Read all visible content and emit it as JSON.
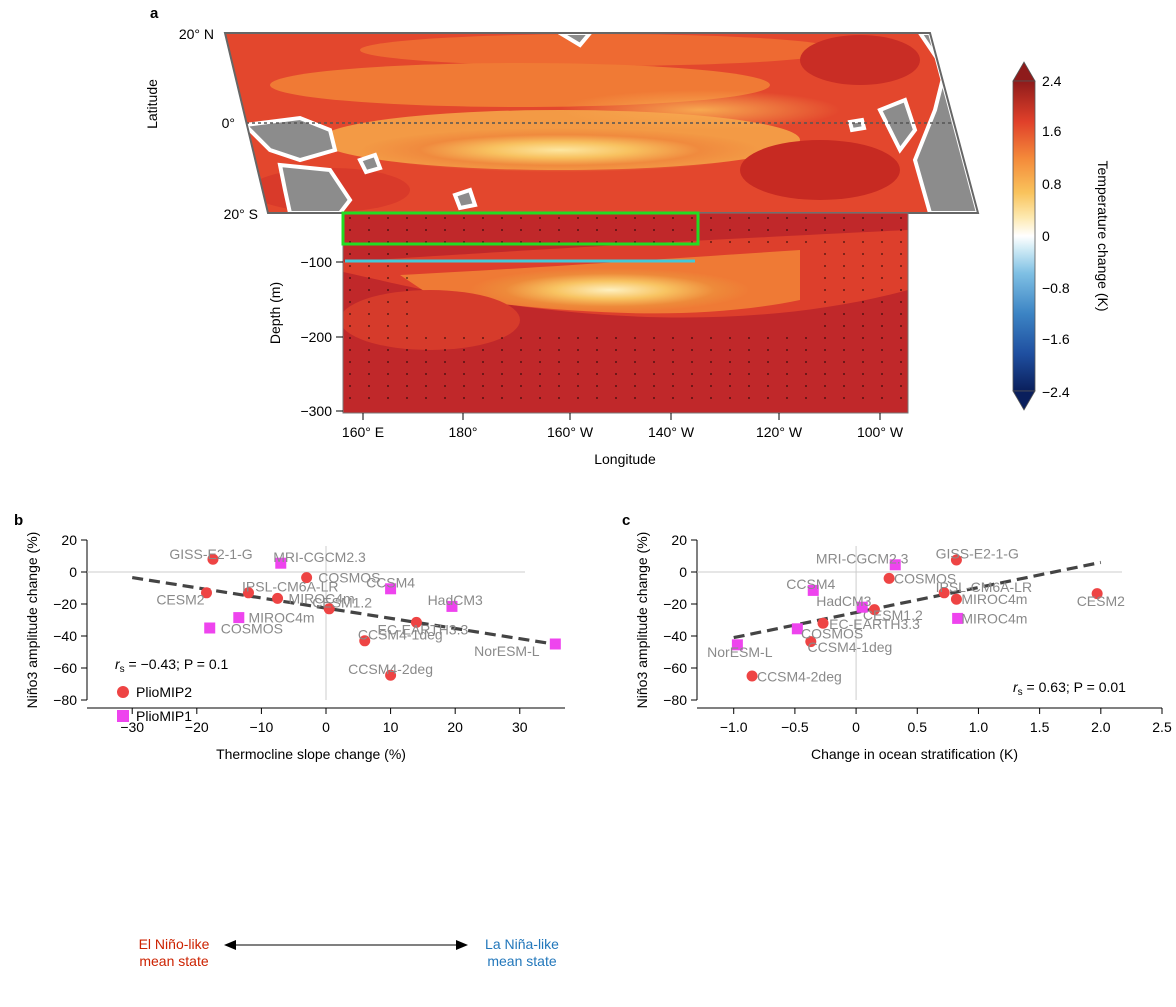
{
  "panel_a": {
    "panel_label": "a",
    "lat_label": "Latitude",
    "lat_ticks": [
      "20° N",
      "0°",
      "20° S"
    ],
    "depth_label": "Depth (m)",
    "depth_ticks": [
      "−100",
      "−200",
      "−300"
    ],
    "lon_label": "Longitude",
    "lon_ticks": [
      "160° E",
      "180°",
      "160° W",
      "140° W",
      "120° W",
      "100° W"
    ],
    "colorbar_label": "Temperature change (K)",
    "colorbar_ticks": [
      "2.4",
      "1.6",
      "0.8",
      "0",
      "−0.8",
      "−1.6",
      "−2.4"
    ],
    "colors": {
      "box": "#22dd22",
      "line": "#44c8d8",
      "land": "#8c8c8c"
    }
  },
  "chart_data": [
    {
      "type": "scatter",
      "panel": "b",
      "xlabel": "Thermocline slope change (%)",
      "ylabel": "Niño3 amplitude change (%)",
      "xticks": [
        "−30",
        "−20",
        "−10",
        "0",
        "10",
        "20",
        "30"
      ],
      "yticks": [
        "20",
        "0",
        "−20",
        "−40",
        "−60",
        "−80"
      ],
      "xlim": [
        -37,
        37
      ],
      "ylim": [
        -80,
        20
      ],
      "grid": false,
      "legend": [
        "PlioMIP2",
        "PlioMIP1"
      ],
      "legend_position": "bottom-left",
      "stats": {
        "r_label": "r",
        "r_sub": "s",
        "text": " = −0.43; P = 0.1"
      },
      "fit_line": {
        "x": [
          -30,
          36
        ],
        "y": [
          -3.5,
          -45.5
        ]
      },
      "series": [
        {
          "name": "PlioMIP2",
          "color": "#ee4444",
          "marker": "circle",
          "points": [
            {
              "label": "GISS-E2-1-G",
              "x": -17.5,
              "y": 8,
              "lx": -17.8,
              "ly": 11.4,
              "anchor": "middle"
            },
            {
              "label": "COSMOS",
              "x": -3,
              "y": -3.5,
              "lx": -1.2,
              "ly": -3.5,
              "anchor": "start"
            },
            {
              "label": "IPSL-CM6A-LR",
              "x": -12,
              "y": -13,
              "lx": -13,
              "ly": -9,
              "anchor": "start"
            },
            {
              "label": "CESM2",
              "x": -18.5,
              "y": -13,
              "lx": -18.8,
              "ly": -17.3,
              "anchor": "end"
            },
            {
              "label": "MIROC4m",
              "x": -7.5,
              "y": -16.5,
              "lx": -5.8,
              "ly": -16.5,
              "anchor": "start"
            },
            {
              "label": "CESM1.2",
              "x": 0.5,
              "y": -23,
              "lx": 2.5,
              "ly": -19,
              "anchor": "middle"
            },
            {
              "label": "EC-EARTH3.3",
              "x": 14,
              "y": -31.5,
              "lx": 15,
              "ly": -35.8,
              "anchor": "middle"
            },
            {
              "label": "CCSM4-1deg",
              "x": 6,
              "y": -43,
              "lx": 11.5,
              "ly": -39,
              "anchor": "middle"
            },
            {
              "label": "CCSM4-2deg",
              "x": 10,
              "y": -64.5,
              "lx": 10,
              "ly": -60.5,
              "anchor": "middle"
            }
          ]
        },
        {
          "name": "PlioMIP1",
          "color": "#ee44ee",
          "marker": "square",
          "points": [
            {
              "label": "MRI-CGCM2.3",
              "x": -7,
              "y": 5.5,
              "lx": -1,
              "ly": 9.5,
              "anchor": "middle"
            },
            {
              "label": "CCSM4",
              "x": 10,
              "y": -10.5,
              "lx": 10,
              "ly": -6.5,
              "anchor": "middle"
            },
            {
              "label": "HadCM3",
              "x": 19.5,
              "y": -21.5,
              "lx": 20,
              "ly": -17.5,
              "anchor": "middle"
            },
            {
              "label": "MIROC4m",
              "x": -13.5,
              "y": -28.5,
              "lx": -12,
              "ly": -28.5,
              "anchor": "start"
            },
            {
              "label": "COSMOS",
              "x": -18,
              "y": -35,
              "lx": -16.3,
              "ly": -35.3,
              "anchor": "start"
            },
            {
              "label": "NorESM-L",
              "x": 35.5,
              "y": -45,
              "lx": 28,
              "ly": -49.3,
              "anchor": "middle"
            }
          ]
        }
      ],
      "annotation": {
        "left": [
          "El Niño-like",
          "mean state"
        ],
        "right": [
          "La Niña-like",
          "mean state"
        ],
        "left_color": "#cc2200",
        "right_color": "#2277bb"
      }
    },
    {
      "type": "scatter",
      "panel": "c",
      "xlabel": "Change in ocean stratification (K)",
      "ylabel": "Niño3 amplitude change (%)",
      "xticks": [
        "−1.0",
        "−0.5",
        "0",
        "0.5",
        "1.0",
        "1.5",
        "2.0",
        "2.5"
      ],
      "yticks": [
        "20",
        "0",
        "−20",
        "−40",
        "−60",
        "−80"
      ],
      "xlim": [
        -1.3,
        2.5
      ],
      "ylim": [
        -80,
        20
      ],
      "grid": false,
      "stats": {
        "r_label": "r",
        "r_sub": "s",
        "text": " = 0.63; P = 0.01"
      },
      "fit_line": {
        "x": [
          -1.0,
          2.0
        ],
        "y": [
          -41,
          6
        ]
      },
      "series": [
        {
          "name": "PlioMIP2",
          "color": "#ee4444",
          "marker": "circle",
          "points": [
            {
              "label": "GISS-E2-1-G",
              "x": 0.82,
              "y": 7.5,
              "lx": 0.65,
              "ly": 11.5,
              "anchor": "start"
            },
            {
              "label": "COSMOS",
              "x": 0.27,
              "y": -4,
              "lx": 0.31,
              "ly": -4,
              "anchor": "start"
            },
            {
              "label": "IPSL-CM6A-LR",
              "x": 0.72,
              "y": -13,
              "lx": 0.65,
              "ly": -9.3,
              "anchor": "start"
            },
            {
              "label": "MIROC4m",
              "x": 0.82,
              "y": -17,
              "lx": 0.86,
              "ly": -17,
              "anchor": "start"
            },
            {
              "label": "CESM2",
              "x": 1.97,
              "y": -13.5,
              "lx": 2.0,
              "ly": -18,
              "anchor": "middle"
            },
            {
              "label": "CESM1.2",
              "x": 0.15,
              "y": -23.5,
              "lx": 0.3,
              "ly": -27,
              "anchor": "middle"
            },
            {
              "label": "EC-EARTH3.3",
              "x": -0.27,
              "y": -32,
              "lx": -0.22,
              "ly": -32.5,
              "anchor": "start"
            },
            {
              "label": "CCSM4-1deg",
              "x": -0.37,
              "y": -43.5,
              "lx": -0.05,
              "ly": -46.8,
              "anchor": "middle"
            },
            {
              "label": "CCSM4-2deg",
              "x": -0.85,
              "y": -65,
              "lx": -0.81,
              "ly": -65.3,
              "anchor": "start"
            }
          ]
        },
        {
          "name": "PlioMIP1",
          "color": "#ee44ee",
          "marker": "square",
          "points": [
            {
              "label": "MRI-CGCM2.3",
              "x": 0.32,
              "y": 4.5,
              "lx": 0.05,
              "ly": 8.5,
              "anchor": "middle"
            },
            {
              "label": "CCSM4",
              "x": -0.35,
              "y": -11.5,
              "lx": -0.37,
              "ly": -7.5,
              "anchor": "middle"
            },
            {
              "label": "HadCM3",
              "x": 0.05,
              "y": -22,
              "lx": -0.1,
              "ly": -18,
              "anchor": "middle"
            },
            {
              "label": "MIROC4m",
              "x": 0.83,
              "y": -29,
              "lx": 0.86,
              "ly": -29,
              "anchor": "start"
            },
            {
              "label": "COSMOS",
              "x": -0.48,
              "y": -35.5,
              "lx": -0.45,
              "ly": -38.3,
              "anchor": "start"
            },
            {
              "label": "NorESM-L",
              "x": -0.97,
              "y": -45.5,
              "lx": -0.95,
              "ly": -50,
              "anchor": "middle"
            }
          ]
        }
      ]
    }
  ]
}
